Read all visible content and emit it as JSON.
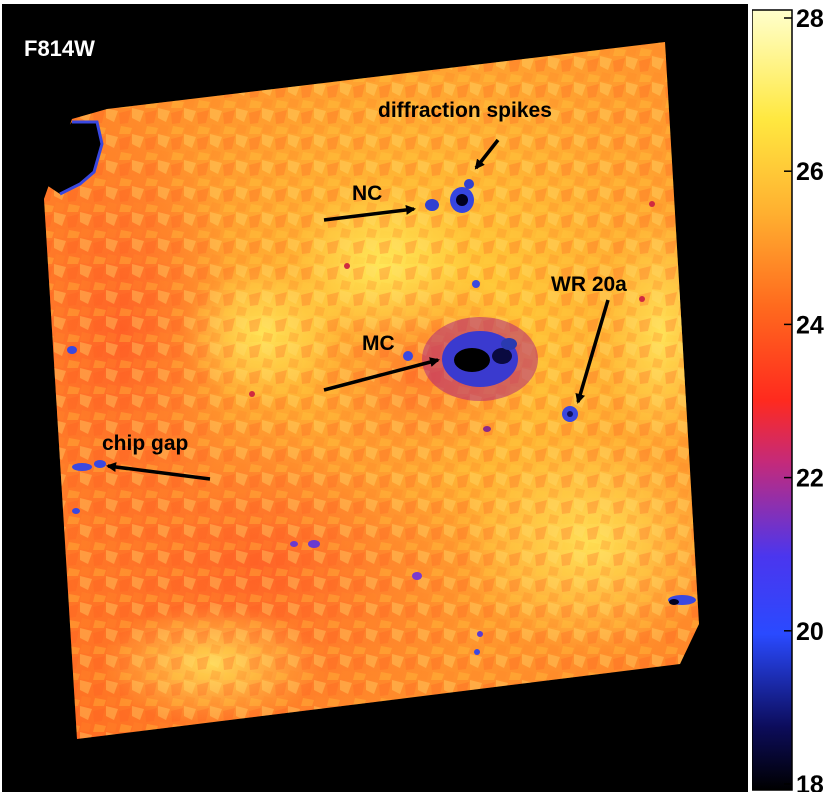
{
  "image": {
    "filter_label": "F814W",
    "annotations": {
      "diffraction_spikes": "diffraction spikes",
      "nc": "NC",
      "wr20a": "WR 20a",
      "mc": "MC",
      "chip_gap": "chip gap"
    }
  },
  "colorbar": {
    "ticks": [
      "28",
      "26",
      "24",
      "22",
      "20",
      "18"
    ],
    "range": [
      18,
      28
    ],
    "colormap": [
      "#000000",
      "#1a1a8c",
      "#2f4bff",
      "#7a2fd0",
      "#ff2020",
      "#ff7a1a",
      "#ffd030",
      "#ffff60",
      "#ffffc0"
    ]
  }
}
